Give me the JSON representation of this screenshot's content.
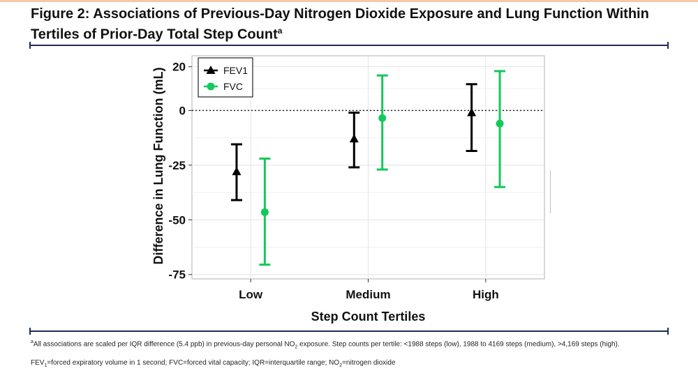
{
  "header": {
    "title_line1": "Figure 2: Associations of Previous-Day Nitrogen Dioxide Exposure and Lung Function Within",
    "title_line2": "Tertiles of Prior-Day Total Step Count",
    "title_sup": "a"
  },
  "footnotes": {
    "f1_mark": "a",
    "f1_part1": "All associations are scaled per IQR difference (5.4 ppb) in previous-day personal NO",
    "f1_sub": "2",
    "f1_part2": " exposure. Step counts per tertile: <1988 steps (low), 1988 to 4169 steps (medium), >4,169 steps (high).",
    "f2_part1": "FEV",
    "f2_sub1": "1",
    "f2_part2": "=forced expiratory volume in 1 second; FVC=forced vital capacity; IQR=interquartile range; NO",
    "f2_sub2": "2",
    "f2_part3": "=nitrogen dioxide"
  },
  "chart_data": {
    "type": "scatter",
    "subtype": "point-with-error-bars",
    "xlabel": "Step Count Tertiles",
    "ylabel": "Difference in Lung Function (mL)",
    "categories": [
      "Low",
      "Medium",
      "High"
    ],
    "ylim": [
      -77,
      25
    ],
    "yticks": [
      20,
      0,
      -25,
      -50,
      -75
    ],
    "ytick_labels": [
      "20",
      "0",
      "-25",
      "-50",
      "-75"
    ],
    "reference_line": 0,
    "grid": true,
    "legend_position": "top-left",
    "series": [
      {
        "name": "FEV1",
        "marker": "triangle",
        "color": "#000000",
        "values": [
          -28,
          -13,
          -1
        ],
        "lower": [
          -41,
          -26,
          -18.5
        ],
        "upper": [
          -15.5,
          -1,
          12
        ]
      },
      {
        "name": "FVC",
        "marker": "circle",
        "color": "#14c85a",
        "values": [
          -46.5,
          -3.5,
          -6
        ],
        "lower": [
          -70.5,
          -27,
          -35
        ],
        "upper": [
          -22,
          16,
          18
        ]
      }
    ]
  }
}
